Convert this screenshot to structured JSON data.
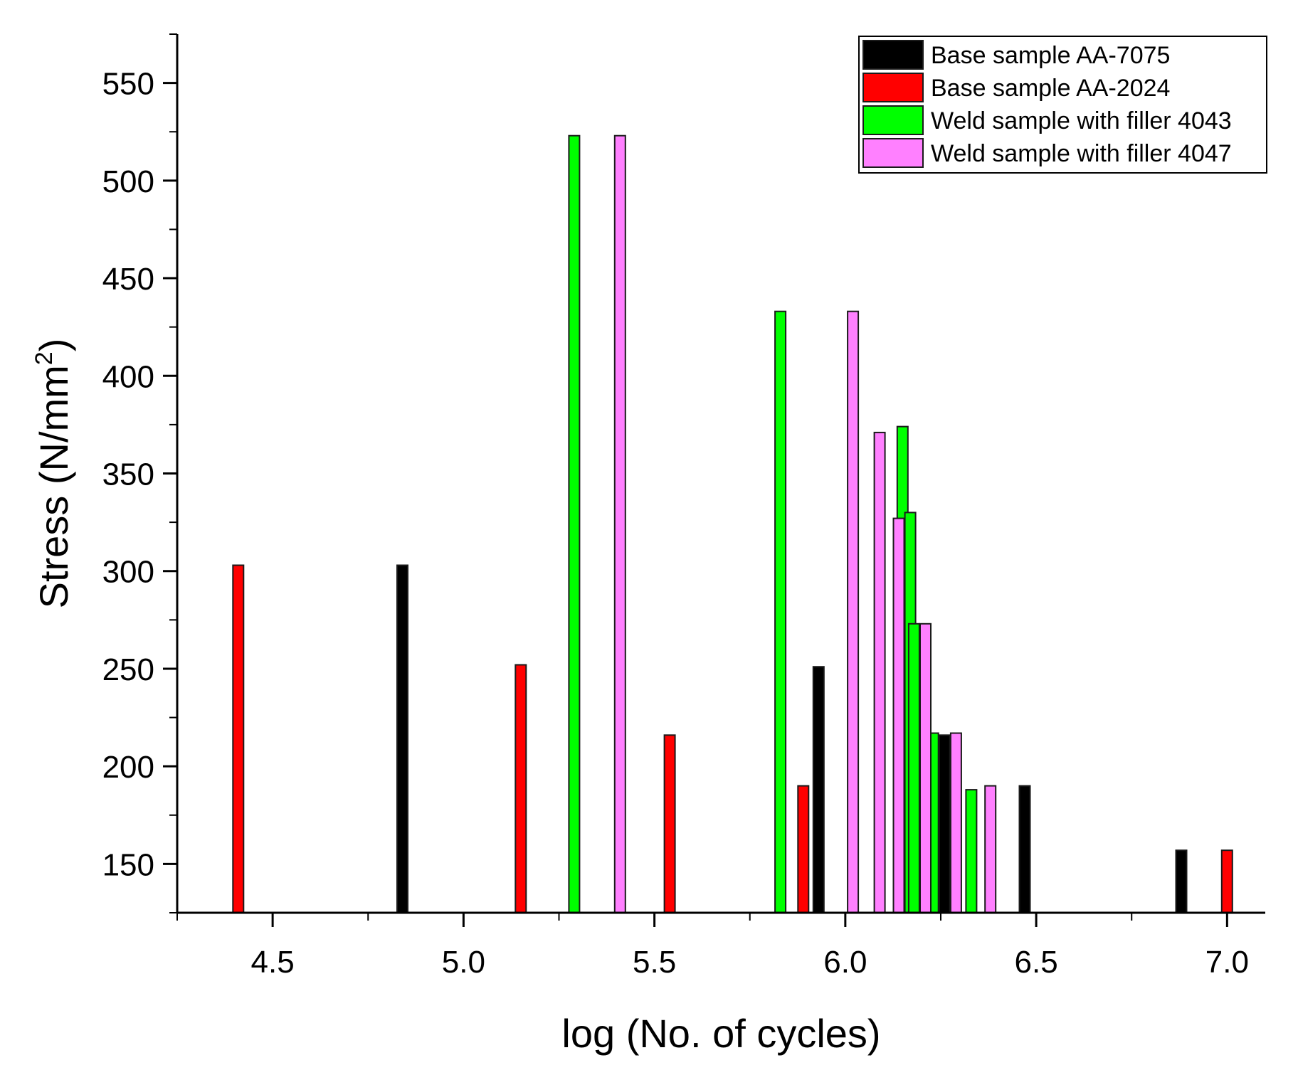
{
  "chart_data": {
    "type": "bar",
    "title": "",
    "xlabel": "log (No. of cycles)",
    "ylabel_main": "Stress (N/mm",
    "ylabel_sup": "2",
    "ylabel_close": ")",
    "xlim": [
      4.25,
      7.1
    ],
    "ylim": [
      125,
      575
    ],
    "x_ticks": [
      4.5,
      5.0,
      5.5,
      6.0,
      6.5,
      7.0
    ],
    "x_tick_labels": [
      "4.5",
      "5.0",
      "5.5",
      "6.0",
      "6.5",
      "7.0"
    ],
    "y_ticks": [
      150,
      200,
      250,
      300,
      350,
      400,
      450,
      500,
      550
    ],
    "y_tick_labels": [
      "150",
      "200",
      "250",
      "300",
      "350",
      "400",
      "450",
      "500",
      "550"
    ],
    "x_minor_step": 0.25,
    "y_minor_step": 25,
    "bar_width": 0.028,
    "legend_position": "top-right",
    "series": [
      {
        "name": "Base sample AA-7075",
        "color": "#000000",
        "points": [
          {
            "x": 4.84,
            "y": 303
          },
          {
            "x": 5.93,
            "y": 251
          },
          {
            "x": 6.26,
            "y": 216
          },
          {
            "x": 6.47,
            "y": 190
          },
          {
            "x": 6.88,
            "y": 157
          }
        ]
      },
      {
        "name": "Base sample AA-2024",
        "color": "#ff0000",
        "points": [
          {
            "x": 4.41,
            "y": 303
          },
          {
            "x": 5.15,
            "y": 252
          },
          {
            "x": 5.54,
            "y": 216
          },
          {
            "x": 5.89,
            "y": 190
          },
          {
            "x": 7.0,
            "y": 157
          }
        ]
      },
      {
        "name": "Weld sample with filler 4043",
        "color": "#00ff00",
        "points": [
          {
            "x": 5.29,
            "y": 523
          },
          {
            "x": 5.83,
            "y": 433
          },
          {
            "x": 6.15,
            "y": 374
          },
          {
            "x": 6.17,
            "y": 330
          },
          {
            "x": 6.18,
            "y": 273
          },
          {
            "x": 6.23,
            "y": 217
          },
          {
            "x": 6.33,
            "y": 188
          }
        ]
      },
      {
        "name": "Weld sample with filler 4047",
        "color": "#ff80ff",
        "points": [
          {
            "x": 5.41,
            "y": 523
          },
          {
            "x": 6.02,
            "y": 433
          },
          {
            "x": 6.09,
            "y": 371
          },
          {
            "x": 6.14,
            "y": 327
          },
          {
            "x": 6.21,
            "y": 273
          },
          {
            "x": 6.29,
            "y": 217
          },
          {
            "x": 6.38,
            "y": 190
          }
        ]
      }
    ]
  }
}
